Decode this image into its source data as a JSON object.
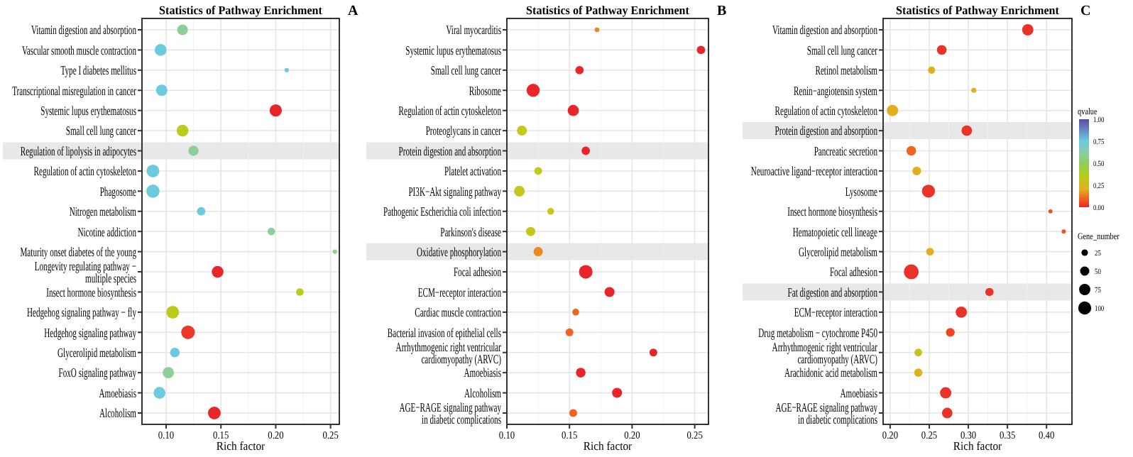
{
  "chart_data": [
    {
      "type": "bubble",
      "orientation": "horizontal",
      "title": "Statistics of Pathway Enrichment",
      "xlabel": "Rich factor",
      "annotations": [
        "A"
      ],
      "grid": true,
      "categories": [
        "Vitamin digestion and absorption",
        "Vascular smooth muscle contraction",
        "Type I diabetes mellitus",
        "Transcriptional misregulation in cancer",
        "Systemic lupus erythematosus",
        "Small cell lung cancer",
        "Regulation of lipolysis in adipocytes",
        "Regulation of actin cytoskeleton",
        "Phagosome",
        "Nitrogen metabolism",
        "Nicotine addiction",
        "Maturity onset diabetes of the young",
        "Longevity regulating pathway −\nmultiple species",
        "Insect hormone biosynthesis",
        "Hedgehog signaling pathway − fly",
        "Hedgehog signaling pathway",
        "Glycerolipid metabolism",
        "FoxO signaling pathway",
        "Amoebiasis",
        "Alcoholism"
      ],
      "values": [
        0.115,
        0.095,
        0.21,
        0.096,
        0.2,
        0.115,
        0.125,
        0.088,
        0.088,
        0.132,
        0.196,
        0.254,
        0.147,
        0.222,
        0.106,
        0.12,
        0.108,
        0.102,
        0.094,
        0.144
      ],
      "sizes": [
        0.62,
        0.75,
        0.1,
        0.69,
        0.81,
        0.75,
        0.56,
        0.88,
        0.94,
        0.38,
        0.31,
        0.1,
        0.75,
        0.31,
        0.88,
        1,
        0.5,
        0.69,
        0.75,
        0.88
      ],
      "colors": [
        "#8ccf9a",
        "#6ccadf",
        "#6ccadf",
        "#6ccadf",
        "#e8262a",
        "#b9cc1c",
        "#8ccf9a",
        "#6ccadf",
        "#6ccadf",
        "#6ccadf",
        "#8ccf9a",
        "#8ccf9a",
        "#e8262a",
        "#b9cc1c",
        "#b9cc1c",
        "#ea3a26",
        "#6ccadf",
        "#8ccf9a",
        "#6ccadf",
        "#e8262a"
      ],
      "xlim": [
        0.078,
        0.258
      ],
      "xticks": [
        {
          "value": 0.1,
          "label": "0.10"
        },
        {
          "value": 0.15,
          "label": "0.15"
        },
        {
          "value": 0.2,
          "label": "0.20"
        },
        {
          "value": 0.25,
          "label": "0.25"
        }
      ],
      "bands": [
        {
          "axis": "y",
          "from": "Regulation of lipolysis in adipocytes",
          "to": "Regulation of lipolysis in adipocytes",
          "color": "#d9d9d9"
        }
      ]
    },
    {
      "type": "bubble",
      "orientation": "horizontal",
      "title": "Statistics of Pathway Enrichment",
      "xlabel": "Rich factor",
      "annotations": [
        "B"
      ],
      "grid": true,
      "categories": [
        "Viral myocarditis",
        "Systemic lupus erythematosus",
        "Small cell lung cancer",
        "Ribosome",
        "Regulation of actin cytoskeleton",
        "Proteoglycans in cancer",
        "Protein digestion and absorption",
        "Platelet activation",
        "PI3K−Akt signaling pathway",
        "Pathogenic Escherichia coli infection",
        "Parkinson's disease",
        "Oxidative phosphorylation",
        "Focal adhesion",
        "ECM−receptor interaction",
        "Cardiac muscle contraction",
        "Bacterial invasion of epithelial cells",
        "Arrhythmogenic right ventricular\ncardiomyopathy (ARVC)",
        "Amoebiasis",
        "Alcoholism",
        "AGE−RAGE signaling pathway\nin diabetic complications"
      ],
      "values": [
        0.172,
        0.255,
        0.158,
        0.121,
        0.153,
        0.112,
        0.163,
        0.125,
        0.11,
        0.135,
        0.119,
        0.125,
        0.163,
        0.182,
        0.155,
        0.15,
        0.217,
        0.159,
        0.188,
        0.153
      ],
      "sizes": [
        0.12,
        0.38,
        0.38,
        0.92,
        0.67,
        0.54,
        0.38,
        0.33,
        0.62,
        0.25,
        0.46,
        0.46,
        1,
        0.54,
        0.25,
        0.33,
        0.33,
        0.5,
        0.54,
        0.33
      ],
      "colors": [
        "#e98a1f",
        "#e8262a",
        "#e8262a",
        "#e8262a",
        "#e8262a",
        "#c4c81c",
        "#e8262a",
        "#c4c81c",
        "#c4c81c",
        "#c4c81c",
        "#c4c81c",
        "#e98a1f",
        "#e8262a",
        "#e8262a",
        "#f0641e",
        "#f0641e",
        "#e8262a",
        "#e8262a",
        "#e8262a",
        "#f0641e"
      ],
      "xlim": [
        0.1,
        0.261
      ],
      "xticks": [
        {
          "value": 0.1,
          "label": "0.10"
        },
        {
          "value": 0.15,
          "label": "0.15"
        },
        {
          "value": 0.2,
          "label": "0.20"
        },
        {
          "value": 0.25,
          "label": "0.25"
        }
      ],
      "bands": [
        {
          "axis": "y",
          "from": "Protein digestion and absorption",
          "to": "Protein digestion and absorption",
          "color": "#d9d9d9"
        },
        {
          "axis": "y",
          "from": "Oxidative phosphorylation",
          "to": "Oxidative phosphorylation",
          "color": "#d9d9d9"
        }
      ]
    },
    {
      "type": "bubble",
      "orientation": "horizontal",
      "title": "Statistics of Pathway Enrichment",
      "xlabel": "Rich factor",
      "annotations": [
        "C"
      ],
      "grid": true,
      "clabel": "qvalue",
      "legend_title": "Gene_number",
      "categories": [
        "Vitamin digestion and absorption",
        "Small cell lung cancer",
        "Retinol metabolism",
        "Renin−angiotensin system",
        "Regulation of actin cytoskeleton",
        "Protein digestion and absorption",
        "Pancreatic secretion",
        "Neuroactive ligand−receptor interaction",
        "Lysosome",
        "Insect hormone biosynthesis",
        "Hematopoietic cell lineage",
        "Glycerolipid metabolism",
        "Focal adhesion",
        "Fat digestion and absorption",
        "ECM−receptor interaction",
        "Drug metabolism − cytochrome P450",
        "Arrhythmogenic right ventricular\ncardiomyopathy (ARVC)",
        "Arachidonic acid metabolism",
        "Amoebiasis",
        "AGE−RAGE signaling pathway\nin diabetic complications"
      ],
      "values": [
        0.376,
        0.266,
        0.253,
        0.307,
        0.203,
        0.298,
        0.227,
        0.234,
        0.249,
        0.405,
        0.422,
        0.251,
        0.227,
        0.327,
        0.291,
        0.277,
        0.236,
        0.236,
        0.271,
        0.273
      ],
      "sizes": [
        75,
        55,
        30,
        15,
        75,
        65,
        55,
        45,
        100,
        10,
        10,
        35,
        130,
        40,
        75,
        45,
        35,
        40,
        75,
        65
      ],
      "cvalues": [
        0.02,
        0.02,
        0.2,
        0.2,
        0.2,
        0.02,
        0.1,
        0.2,
        0.02,
        0.07,
        0.07,
        0.2,
        0.02,
        0.02,
        0.02,
        0.05,
        0.3,
        0.22,
        0.02,
        0.02
      ],
      "xlim": [
        0.191,
        0.4325
      ],
      "xticks": [
        {
          "value": 0.2,
          "label": "0.20"
        },
        {
          "value": 0.25,
          "label": "0.25"
        },
        {
          "value": 0.3,
          "label": "0.30"
        },
        {
          "value": 0.35,
          "label": "0.35"
        },
        {
          "value": 0.4,
          "label": "0.40"
        }
      ],
      "clim": [
        0,
        1
      ],
      "cticks": [
        {
          "value": 0,
          "label": "0.00"
        },
        {
          "value": 0.25,
          "label": "0.25"
        },
        {
          "value": 0.5,
          "label": "0.50"
        },
        {
          "value": 0.75,
          "label": "0.75"
        },
        {
          "value": 1,
          "label": "1.00"
        }
      ],
      "size_legend": [
        25,
        50,
        75,
        100
      ],
      "bands": [
        {
          "axis": "y",
          "from": "Protein digestion and absorption",
          "to": "Protein digestion and absorption",
          "color": "#d9d9d9"
        },
        {
          "axis": "y",
          "from": "Fat digestion and absorption",
          "to": "Fat digestion and absorption",
          "color": "#d9d9d9"
        }
      ]
    }
  ]
}
